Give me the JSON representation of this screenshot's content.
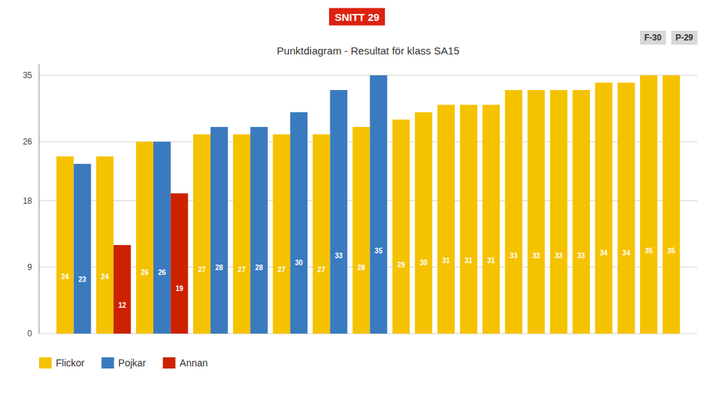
{
  "chart_data": {
    "type": "bar",
    "title": "Punktdiagram - Resultat för klass SA15",
    "annotations": [
      {
        "text": "SNITT 29",
        "color": "#dd2211"
      },
      {
        "text": "F-30"
      },
      {
        "text": "P-29"
      }
    ],
    "categories": [
      null,
      null,
      null,
      null,
      null,
      null,
      null,
      null,
      null,
      null,
      null,
      null,
      null,
      null,
      null,
      null,
      null,
      null,
      null,
      null,
      null
    ],
    "series": [
      {
        "name": "Flickor",
        "color": "#f5c200",
        "values": [
          24,
          24,
          26,
          27,
          27,
          27,
          27,
          28,
          29,
          30,
          31,
          31,
          31,
          33,
          33,
          33,
          33,
          34,
          34,
          35,
          35
        ]
      },
      {
        "name": "Pojkar",
        "color": "#3a7abf",
        "values": [
          23,
          null,
          26,
          28,
          28,
          30,
          33,
          35,
          null,
          null,
          null,
          null,
          null,
          null,
          null,
          null,
          null,
          null,
          null,
          null,
          null
        ]
      },
      {
        "name": "Annan",
        "color": "#cc2200",
        "values": [
          null,
          12,
          19,
          null,
          null,
          null,
          null,
          null,
          null,
          null,
          null,
          null,
          null,
          null,
          null,
          null,
          null,
          null,
          null,
          null,
          null
        ]
      }
    ],
    "ylim": [
      0,
      36.5
    ],
    "yticks": [
      0,
      9,
      18,
      26,
      35
    ],
    "grid": true,
    "legend": "lower left",
    "data_labels": true,
    "tick_labels": "y"
  }
}
